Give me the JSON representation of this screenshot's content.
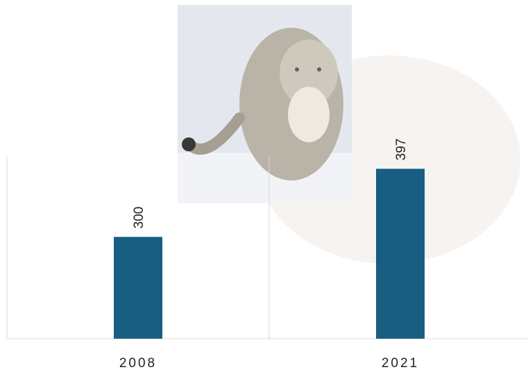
{
  "chart_data": {
    "type": "bar",
    "categories": [
      "2008",
      "2021"
    ],
    "values": [
      300,
      397
    ],
    "color": "#175e82",
    "ylim": [
      155,
      415
    ]
  }
}
